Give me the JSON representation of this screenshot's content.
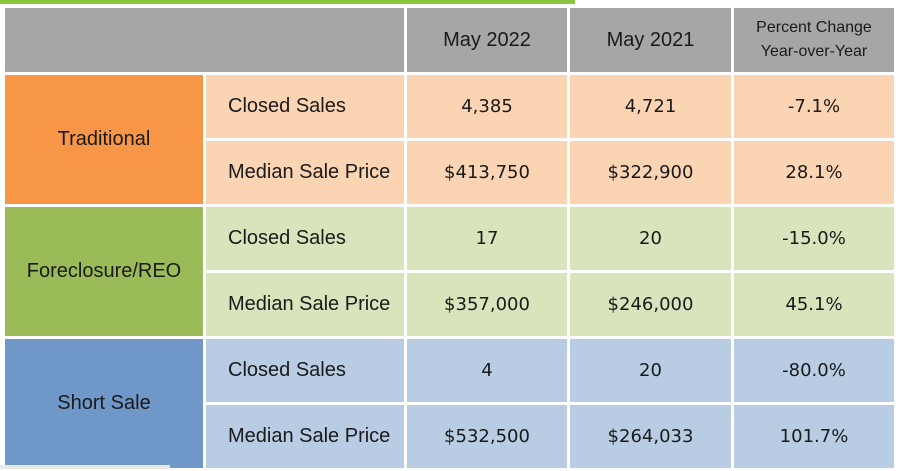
{
  "header": {
    "col1": "May 2022",
    "col2": "May 2021",
    "col3_line1": "Percent Change",
    "col3_line2": "Year-over-Year"
  },
  "groups": [
    {
      "category": "Traditional",
      "rows": [
        {
          "metric": "Closed Sales",
          "may2022": "4,385",
          "may2021": "4,721",
          "change": "-7.1%"
        },
        {
          "metric": "Median Sale Price",
          "may2022": "$413,750",
          "may2021": "$322,900",
          "change": "28.1%"
        }
      ]
    },
    {
      "category": "Foreclosure/REO",
      "rows": [
        {
          "metric": "Closed Sales",
          "may2022": "17",
          "may2021": "20",
          "change": "-15.0%"
        },
        {
          "metric": "Median Sale Price",
          "may2022": "$357,000",
          "may2021": "$246,000",
          "change": "45.1%"
        }
      ]
    },
    {
      "category": "Short Sale",
      "rows": [
        {
          "metric": "Closed Sales",
          "may2022": "4",
          "may2021": "20",
          "change": "-80.0%"
        },
        {
          "metric": "Median Sale Price",
          "may2022": "$532,500",
          "may2021": "$264,033",
          "change": "101.7%"
        }
      ]
    }
  ],
  "colors": {
    "header": "#a6a6a6",
    "traditional_dark": "#f79646",
    "traditional_light": "#fbd4b4",
    "foreclosure_dark": "#9bbb59",
    "foreclosure_light": "#d8e4bc",
    "short_dark": "#6f98c8",
    "short_light": "#b8cce4",
    "accent_line": "#8cc63f"
  }
}
